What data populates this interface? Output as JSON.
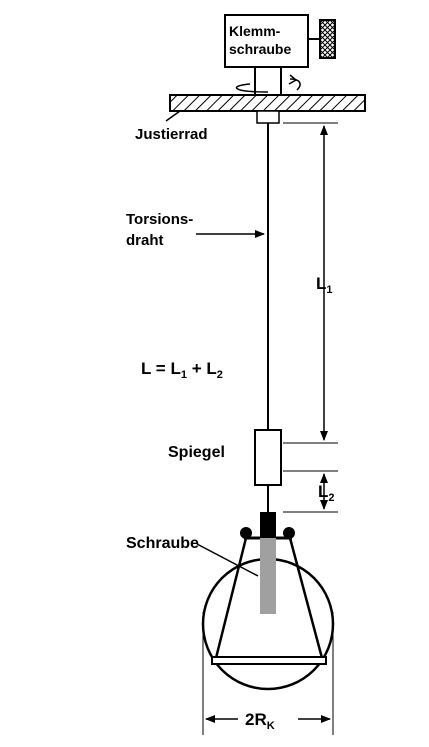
{
  "labels": {
    "klemm_line1": "Klemm-",
    "klemm_line2": "schraube",
    "justierrad": "Justierrad",
    "torsions_line1": "Torsions-",
    "torsions_line2": "draht",
    "l1_main": "L",
    "l1_sub": "1",
    "formula_l": "L = L",
    "formula_sub1": "1",
    "formula_plus": " + L",
    "formula_sub2": "2",
    "spiegel": "Spiegel",
    "l2_main": "L",
    "l2_sub": "2",
    "schraube": "Schraube",
    "rk_main": "2R",
    "rk_sub": "K"
  },
  "colors": {
    "line": "#000000",
    "screw_rod": "#a0a0a0",
    "background": "#ffffff"
  }
}
